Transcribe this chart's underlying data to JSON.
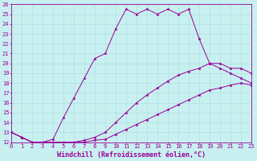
{
  "xlabel": "Windchill (Refroidissement éolien,°C)",
  "xlim": [
    0,
    23
  ],
  "ylim": [
    12,
    26
  ],
  "xticks": [
    0,
    1,
    2,
    3,
    4,
    5,
    6,
    7,
    8,
    9,
    10,
    11,
    12,
    13,
    14,
    15,
    16,
    17,
    18,
    19,
    20,
    21,
    22,
    23
  ],
  "yticks": [
    12,
    13,
    14,
    15,
    16,
    17,
    18,
    19,
    20,
    21,
    22,
    23,
    24,
    25,
    26
  ],
  "bg_color": "#c8f0f0",
  "line_color": "#990099",
  "grid_color": "#aadddd",
  "line1_x": [
    0,
    1,
    2,
    3,
    4,
    5,
    6,
    7,
    8,
    9,
    10,
    11,
    12,
    13,
    14,
    15,
    16,
    17,
    18,
    19,
    20,
    21,
    22,
    23
  ],
  "line1_y": [
    13,
    12.5,
    12,
    12,
    12.3,
    14.5,
    16.5,
    18.5,
    20.5,
    21.0,
    23.5,
    25.5,
    25.0,
    25.5,
    25.0,
    25.5,
    25.0,
    25.5,
    22.5,
    20.0,
    19.5,
    19.0,
    18.5,
    18.0
  ],
  "line2_x": [
    0,
    1,
    2,
    3,
    4,
    5,
    6,
    7,
    8,
    9,
    10,
    11,
    12,
    13,
    14,
    15,
    16,
    17,
    18,
    19,
    20,
    21,
    22,
    23
  ],
  "line2_y": [
    13,
    12.5,
    12,
    12,
    12,
    12,
    12,
    12.2,
    12.5,
    13.0,
    14.0,
    15.0,
    16.0,
    16.8,
    17.5,
    18.2,
    18.8,
    19.2,
    19.5,
    20.0,
    20.0,
    19.5,
    19.5,
    19.0
  ],
  "line3_x": [
    0,
    1,
    2,
    3,
    4,
    5,
    6,
    7,
    8,
    9,
    10,
    11,
    12,
    13,
    14,
    15,
    16,
    17,
    18,
    19,
    20,
    21,
    22,
    23
  ],
  "line3_y": [
    13,
    12.5,
    12,
    12,
    12,
    12,
    12,
    12,
    12.2,
    12.3,
    12.8,
    13.3,
    13.8,
    14.3,
    14.8,
    15.3,
    15.8,
    16.3,
    16.8,
    17.3,
    17.5,
    17.8,
    18.0,
    17.8
  ],
  "marker": "*",
  "fontsize_label": 6,
  "fontsize_tick": 5
}
